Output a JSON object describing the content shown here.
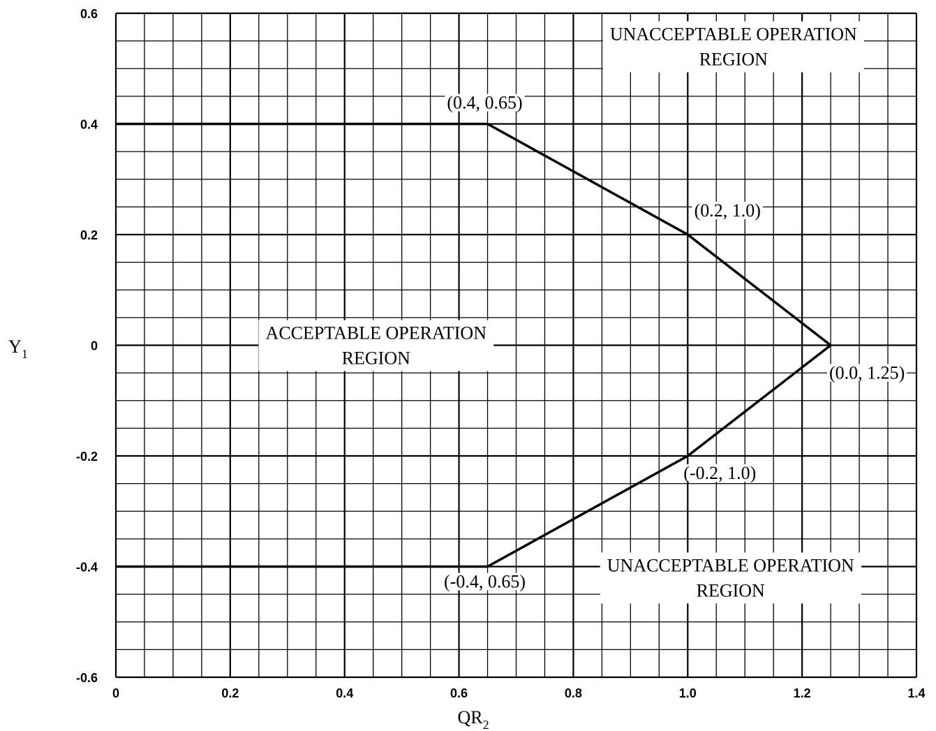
{
  "chart_data": {
    "type": "line",
    "xlabel": "QR",
    "xlabel_sub": "2",
    "ylabel": "Y",
    "ylabel_sub": "1",
    "xlim": [
      0,
      1.4
    ],
    "ylim": [
      -0.6,
      0.6
    ],
    "x_ticks": [
      "0",
      "0.2",
      "0.4",
      "0.6",
      "0.8",
      "1.0",
      "1.2",
      "1.4"
    ],
    "y_ticks": [
      "0.6",
      "0.4",
      "0.2",
      "0",
      "-0.2",
      "-0.4",
      "-0.6"
    ],
    "grid": true,
    "series": [
      {
        "x": [
          0,
          0.65,
          1.0,
          1.25,
          1.0,
          0.65,
          0
        ],
        "y": [
          0.4,
          0.4,
          0.2,
          0.0,
          -0.2,
          -0.4,
          -0.4
        ]
      }
    ],
    "annotations": [
      {
        "text": "(0.4, 0.65)",
        "x": 0.65,
        "y": 0.4
      },
      {
        "text": "(0.2, 1.0)",
        "x": 1.0,
        "y": 0.2
      },
      {
        "text": "(0.0, 1.25)",
        "x": 1.25,
        "y": 0.0
      },
      {
        "text": "(-0.2, 1.0)",
        "x": 1.0,
        "y": -0.2
      },
      {
        "text": "(-0.4, 0.65)",
        "x": 0.65,
        "y": -0.4
      }
    ],
    "regions": [
      {
        "lines": [
          "UNACCEPTABLE OPERATION",
          "REGION"
        ],
        "x": 1.08,
        "y": 0.54
      },
      {
        "lines": [
          "ACCEPTABLE OPERATION",
          "REGION"
        ],
        "x": 0.455,
        "y": 0.0
      },
      {
        "lines": [
          "UNACCEPTABLE OPERATION",
          "REGION"
        ],
        "x": 1.075,
        "y": -0.42
      }
    ]
  }
}
